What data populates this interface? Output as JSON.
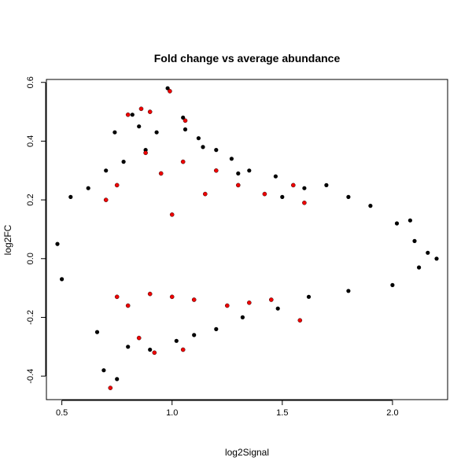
{
  "chart_data": {
    "type": "scatter",
    "title": "Fold change vs average abundance",
    "xlabel": "log2Signal",
    "ylabel": "log2FC",
    "xlim": [
      0.43,
      2.25
    ],
    "ylim": [
      -0.48,
      0.61
    ],
    "x_ticks": [
      0.5,
      1.0,
      1.5,
      2.0
    ],
    "x_tick_labels": [
      "0.5",
      "1.0",
      "1.5",
      "2.0"
    ],
    "y_ticks": [
      -0.4,
      -0.2,
      0.0,
      0.2,
      0.4,
      0.6
    ],
    "y_tick_labels": [
      "-0.4",
      "-0.2",
      "0.0",
      "0.2",
      "0.4",
      "0.6"
    ],
    "grid": false,
    "colors": {
      "black": "#000000",
      "blue": "#0000ee",
      "red": "#ee0000"
    },
    "series": [
      {
        "color": "black",
        "points": [
          [
            0.98,
            0.58
          ],
          [
            1.05,
            0.48
          ],
          [
            0.82,
            0.49
          ],
          [
            1.12,
            0.41
          ],
          [
            1.06,
            0.44
          ],
          [
            0.85,
            0.45
          ],
          [
            0.74,
            0.43
          ],
          [
            0.93,
            0.43
          ],
          [
            1.2,
            0.37
          ],
          [
            1.27,
            0.34
          ],
          [
            1.35,
            0.3
          ],
          [
            1.47,
            0.28
          ],
          [
            1.6,
            0.24
          ],
          [
            1.7,
            0.25
          ],
          [
            1.8,
            0.21
          ],
          [
            1.9,
            0.18
          ],
          [
            2.02,
            0.12
          ],
          [
            2.08,
            0.13
          ],
          [
            0.54,
            0.21
          ],
          [
            0.62,
            0.24
          ],
          [
            0.7,
            0.3
          ],
          [
            0.78,
            0.33
          ],
          [
            0.88,
            0.37
          ],
          [
            1.14,
            0.38
          ],
          [
            1.3,
            0.29
          ],
          [
            1.5,
            0.21
          ],
          [
            2.1,
            0.06
          ],
          [
            2.16,
            0.02
          ],
          [
            2.2,
            0.0
          ],
          [
            0.69,
            -0.38
          ],
          [
            0.75,
            -0.41
          ],
          [
            0.9,
            -0.31
          ],
          [
            1.02,
            -0.28
          ],
          [
            1.1,
            -0.26
          ],
          [
            0.66,
            -0.25
          ],
          [
            0.8,
            -0.3
          ],
          [
            1.2,
            -0.24
          ],
          [
            1.32,
            -0.2
          ],
          [
            1.48,
            -0.17
          ],
          [
            1.62,
            -0.13
          ],
          [
            1.8,
            -0.11
          ],
          [
            2.0,
            -0.09
          ],
          [
            2.12,
            -0.03
          ],
          [
            0.5,
            -0.07
          ],
          [
            0.48,
            0.05
          ]
        ]
      },
      {
        "color": "red",
        "points": [
          [
            0.72,
            -0.44
          ],
          [
            0.99,
            0.57
          ],
          [
            1.06,
            0.47
          ],
          [
            0.86,
            0.51
          ],
          [
            0.9,
            0.5
          ],
          [
            0.8,
            0.49
          ],
          [
            0.88,
            0.36
          ],
          [
            1.05,
            0.33
          ],
          [
            0.95,
            0.29
          ],
          [
            1.15,
            0.22
          ],
          [
            1.2,
            0.3
          ],
          [
            1.3,
            0.25
          ],
          [
            1.42,
            0.22
          ],
          [
            1.55,
            0.25
          ],
          [
            1.6,
            0.19
          ],
          [
            0.75,
            0.25
          ],
          [
            0.7,
            0.2
          ],
          [
            1.0,
            0.15
          ],
          [
            0.9,
            -0.12
          ],
          [
            1.0,
            -0.13
          ],
          [
            1.1,
            -0.14
          ],
          [
            0.8,
            -0.16
          ],
          [
            1.05,
            -0.31
          ],
          [
            0.85,
            -0.27
          ],
          [
            0.92,
            -0.32
          ],
          [
            1.25,
            -0.16
          ],
          [
            1.35,
            -0.15
          ],
          [
            1.58,
            -0.21
          ],
          [
            1.45,
            -0.14
          ],
          [
            0.75,
            -0.13
          ]
        ]
      }
    ]
  }
}
